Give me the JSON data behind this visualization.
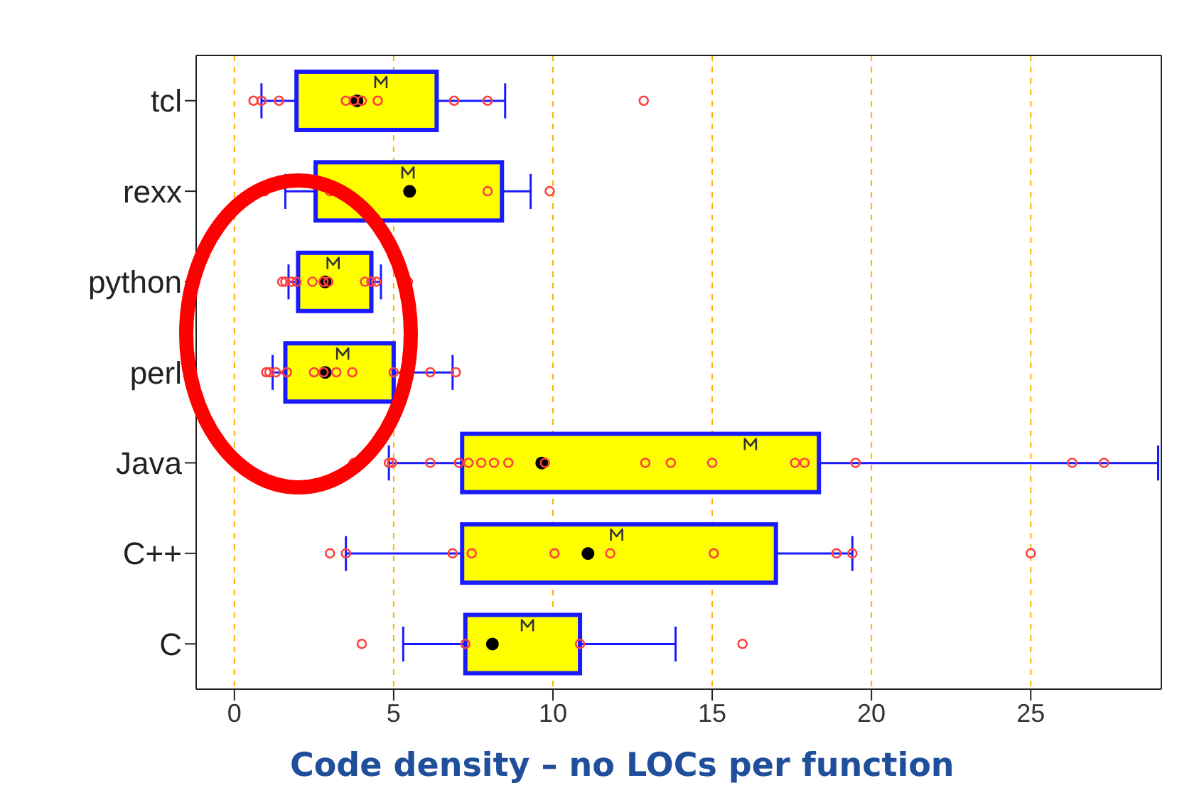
{
  "chart_data": {
    "type": "box",
    "title": "Code density – no LOCs per function",
    "orientation": "horizontal",
    "categories": [
      "tcl",
      "rexx",
      "python",
      "perl",
      "Java",
      "C++",
      "C"
    ],
    "xlim": [
      -1.2,
      29.1
    ],
    "xticks": [
      0,
      5,
      10,
      15,
      20,
      25
    ],
    "grid": "x",
    "series": [
      {
        "type": "box",
        "color": "#ffff00",
        "boxes": [
          {
            "low": 0.85,
            "q1": 1.95,
            "median": 3.85,
            "q3": 6.35,
            "high": 8.5,
            "mean": 4.6
          },
          {
            "low": 1.6,
            "q1": 2.55,
            "median": 5.5,
            "q3": 8.4,
            "high": 9.3,
            "mean": 5.45
          },
          {
            "low": 1.7,
            "q1": 2.0,
            "median": 2.85,
            "q3": 4.3,
            "high": 4.6,
            "mean": 3.1
          },
          {
            "low": 1.2,
            "q1": 1.6,
            "median": 2.85,
            "q3": 5.0,
            "high": 6.85,
            "mean": 3.4
          },
          {
            "low": 4.85,
            "q1": 7.15,
            "median": 9.65,
            "q3": 18.35,
            "high": 29,
            "mean": 16.2
          },
          {
            "low": 3.5,
            "q1": 7.15,
            "median": 11.1,
            "q3": 17.0,
            "high": 19.4,
            "mean": 12.0
          },
          {
            "low": 5.3,
            "q1": 7.25,
            "median": 8.1,
            "q3": 10.85,
            "high": 13.85,
            "mean": 9.2
          }
        ]
      },
      {
        "type": "scatter",
        "color": "#ff4040",
        "marker": "circle",
        "x": [
          "tcl",
          "tcl",
          "tcl",
          "tcl",
          "tcl",
          "tcl",
          "tcl",
          "tcl",
          "tcl",
          "tcl",
          "rexx",
          "rexx",
          "rexx",
          "rexx",
          "python",
          "python",
          "python",
          "python",
          "python",
          "python",
          "python",
          "python",
          "python",
          "python",
          "python",
          "perl",
          "perl",
          "perl",
          "perl",
          "perl",
          "perl",
          "perl",
          "perl",
          "perl",
          "perl",
          "perl",
          "Java",
          "Java",
          "Java",
          "Java",
          "Java",
          "Java",
          "Java",
          "Java",
          "Java",
          "Java",
          "Java",
          "Java",
          "Java",
          "Java",
          "Java",
          "Java",
          "Java",
          "Java",
          "C++",
          "C++",
          "C++",
          "C++",
          "C++",
          "C++",
          "C++",
          "C++",
          "C++",
          "C++",
          "C",
          "C",
          "C",
          "C"
        ],
        "values": [
          0.6,
          0.85,
          1.4,
          3.5,
          3.75,
          4.0,
          4.5,
          6.9,
          7.95,
          12.85,
          0.95,
          3.0,
          7.95,
          9.9,
          1.5,
          1.6,
          1.8,
          1.95,
          2.45,
          2.8,
          2.95,
          4.1,
          4.3,
          4.45,
          5.45,
          1.0,
          1.3,
          1.1,
          1.65,
          2.5,
          2.8,
          3.2,
          3.7,
          5.0,
          6.15,
          6.95,
          3.75,
          4.85,
          4.95,
          6.15,
          7.05,
          7.35,
          7.75,
          8.15,
          8.6,
          9.75,
          12.9,
          13.7,
          15.0,
          17.6,
          17.9,
          19.5,
          26.3,
          27.3,
          3.0,
          3.5,
          6.85,
          7.45,
          10.05,
          11.8,
          15.05,
          18.9,
          19.4,
          25.0,
          4.0,
          7.25,
          10.85,
          15.95
        ]
      }
    ]
  }
}
